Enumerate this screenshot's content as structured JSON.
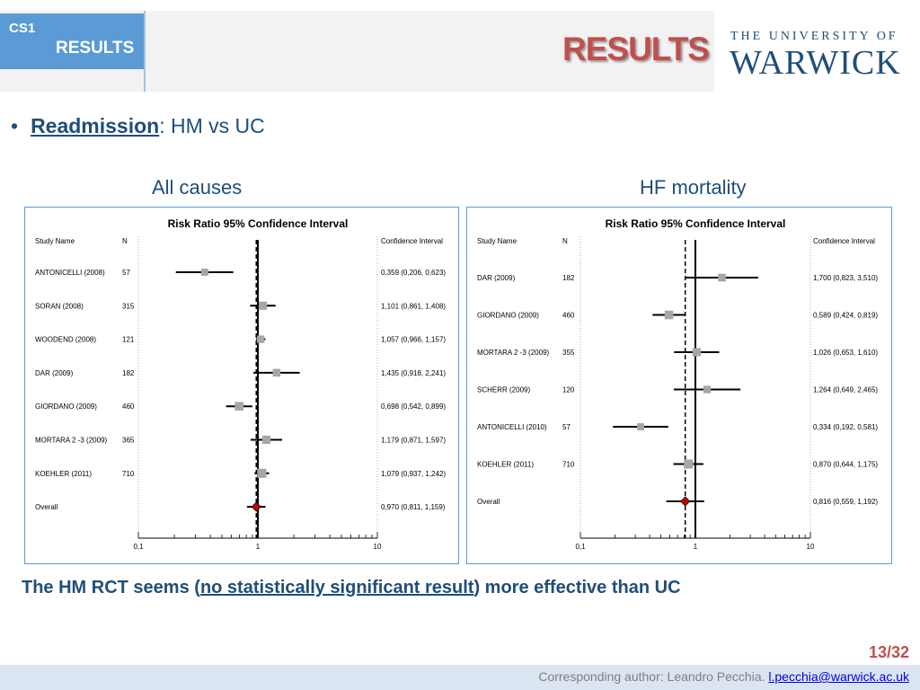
{
  "header": {
    "tag": "CS1",
    "section": "RESULTS",
    "title": "RESULTS"
  },
  "logo": {
    "line1": "THE UNIVERSITY OF",
    "line2": "WARWICK"
  },
  "bullet": {
    "keyword": "Readmission",
    "rest": ": HM vs UC"
  },
  "colors": {
    "accent_blue": "#5b9bd5",
    "title_red": "#c0504d",
    "diamond": "#cc0000",
    "text_navy": "#1f4e79"
  },
  "chart_data": [
    {
      "type": "forest",
      "caption": "All causes",
      "title": "Risk Ratio 95% Confidence Interval",
      "col_headers": {
        "study": "Study Name",
        "n": "N",
        "ci": "Confidence Interval"
      },
      "xscale": "log",
      "xlim": [
        0.1,
        10
      ],
      "xticks": [
        "0,1",
        "1",
        "10"
      ],
      "reference_line": 1,
      "pooled_line": 0.97,
      "studies": [
        {
          "name": "ANTONICELLI (2008)",
          "n": "57",
          "rr": 0.359,
          "lo": 0.206,
          "hi": 0.623,
          "ci_text": "0,359 (0,206, 0,623)"
        },
        {
          "name": "SORAN (2008)",
          "n": "315",
          "rr": 1.101,
          "lo": 0.861,
          "hi": 1.408,
          "ci_text": "1,101 (0,861, 1,408)"
        },
        {
          "name": "WOODEND (2008)",
          "n": "121",
          "rr": 1.057,
          "lo": 0.966,
          "hi": 1.157,
          "ci_text": "1,057 (0,966, 1,157)"
        },
        {
          "name": "DAR (2009)",
          "n": "182",
          "rr": 1.435,
          "lo": 0.918,
          "hi": 2.241,
          "ci_text": "1,435 (0,918, 2,241)"
        },
        {
          "name": "GIORDANO (2009)",
          "n": "460",
          "rr": 0.698,
          "lo": 0.542,
          "hi": 0.899,
          "ci_text": "0,698 (0,542, 0,899)"
        },
        {
          "name": "MORTARA 2 -3 (2009)",
          "n": "365",
          "rr": 1.179,
          "lo": 0.871,
          "hi": 1.597,
          "ci_text": "1,179 (0,871, 1,597)"
        },
        {
          "name": "KOEHLER (2011)",
          "n": "710",
          "rr": 1.079,
          "lo": 0.937,
          "hi": 1.242,
          "ci_text": "1,079 (0,937, 1,242)"
        }
      ],
      "overall": {
        "name": "Overall",
        "rr": 0.97,
        "lo": 0.811,
        "hi": 1.159,
        "ci_text": "0,970 (0,811, 1,159)"
      }
    },
    {
      "type": "forest",
      "caption": "HF mortality",
      "title": "Risk Ratio 95% Confidence Interval",
      "col_headers": {
        "study": "Study Name",
        "n": "N",
        "ci": "Confidence Interval"
      },
      "xscale": "log",
      "xlim": [
        0.1,
        10
      ],
      "xticks": [
        "0,1",
        "1",
        "10"
      ],
      "reference_line": 1,
      "pooled_line": 0.816,
      "studies": [
        {
          "name": "DAR (2009)",
          "n": "182",
          "rr": 1.7,
          "lo": 0.823,
          "hi": 3.51,
          "ci_text": "1,700 (0,823, 3,510)"
        },
        {
          "name": "GIORDANO (2009)",
          "n": "460",
          "rr": 0.589,
          "lo": 0.424,
          "hi": 0.819,
          "ci_text": "0,589 (0,424, 0,819)"
        },
        {
          "name": "MORTARA 2 -3 (2009)",
          "n": "355",
          "rr": 1.026,
          "lo": 0.653,
          "hi": 1.61,
          "ci_text": "1,026 (0,653, 1,610)"
        },
        {
          "name": "SCHERR (2009)",
          "n": "120",
          "rr": 1.264,
          "lo": 0.649,
          "hi": 2.465,
          "ci_text": "1,264 (0,649, 2,465)"
        },
        {
          "name": "ANTONICELLI (2010)",
          "n": "57",
          "rr": 0.334,
          "lo": 0.192,
          "hi": 0.581,
          "ci_text": "0,334 (0,192, 0,581)"
        },
        {
          "name": "KOEHLER (2011)",
          "n": "710",
          "rr": 0.87,
          "lo": 0.644,
          "hi": 1.175,
          "ci_text": "0,870 (0,644, 1,175)"
        }
      ],
      "overall": {
        "name": "Overall",
        "rr": 0.816,
        "lo": 0.559,
        "hi": 1.192,
        "ci_text": "0,816 (0,559, 1,192)"
      }
    }
  ],
  "conclusion": {
    "before": "The HM RCT seems (",
    "underlined": "no statistically significant result",
    "after": ") more effective than UC"
  },
  "page": {
    "number": "13/32"
  },
  "footer": {
    "text": "Corresponding author: Leandro Pecchia. ",
    "email": "l.pecchia@warwick.ac.uk"
  }
}
